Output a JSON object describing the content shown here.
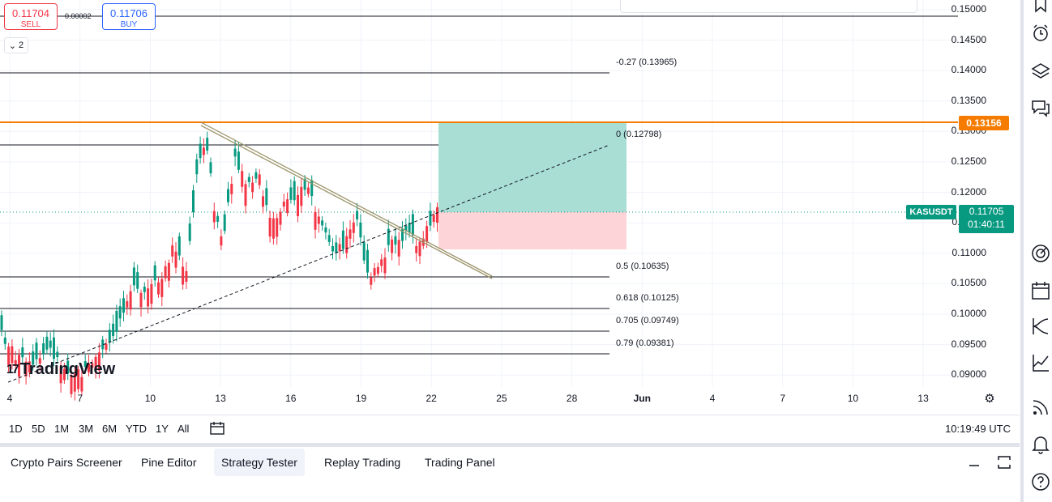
{
  "trade": {
    "sell_price": "0.11704",
    "sell_label": "SELL",
    "buy_price": "0.11706",
    "buy_label": "BUY",
    "spread": "0.00002",
    "collapse_count": "2"
  },
  "chart": {
    "symbol": "KASUSDT",
    "current_price": "0.11705",
    "countdown": "01:40:11",
    "resistance_price": "0.13156",
    "price_ticks": [
      "0.15000",
      "0.14500",
      "0.14000",
      "0.13500",
      "0.13000",
      "0.12500",
      "0.12000",
      "0.11500",
      "0.11000",
      "0.10500",
      "0.10000",
      "0.09500",
      "0.09000"
    ],
    "date_ticks": [
      "4",
      "7",
      "10",
      "13",
      "16",
      "19",
      "22",
      "25",
      "28",
      "Jun",
      "4",
      "7",
      "10",
      "13"
    ],
    "fib_levels": [
      {
        "label": "-0.27 (0.13965)"
      },
      {
        "label": "0 (0.12798)"
      },
      {
        "label": "0.5 (0.10635)"
      },
      {
        "label": "0.618 (0.10125)"
      },
      {
        "label": "0.705 (0.09749)"
      },
      {
        "label": "0.79 (0.09381)"
      }
    ],
    "logo_text": "TradingView",
    "colors": {
      "up": "#089981",
      "down": "#f23645",
      "resistance": "#f57c00",
      "profit_zone": "#a9ded5",
      "loss_zone": "#fdd4d8",
      "trendline": "#c9c18a"
    }
  },
  "range_bar": {
    "ranges": [
      "1D",
      "5D",
      "1M",
      "3M",
      "6M",
      "YTD",
      "1Y",
      "All"
    ],
    "clock": "10:19:49 UTC"
  },
  "bottom_tabs": [
    {
      "label": "Crypto Pairs Screener"
    },
    {
      "label": "Pine Editor"
    },
    {
      "label": "Strategy Tester"
    },
    {
      "label": "Replay Trading"
    },
    {
      "label": "Trading Panel"
    }
  ],
  "right_toolbar": {
    "icons": [
      "bookmark-icon",
      "alarm-clock-icon",
      "layers-icon",
      "chat-icon",
      "target-icon",
      "calendar-icon",
      "trend-icon",
      "chart-line-icon",
      "broadcast-icon",
      "bell-icon",
      "help-icon"
    ]
  }
}
